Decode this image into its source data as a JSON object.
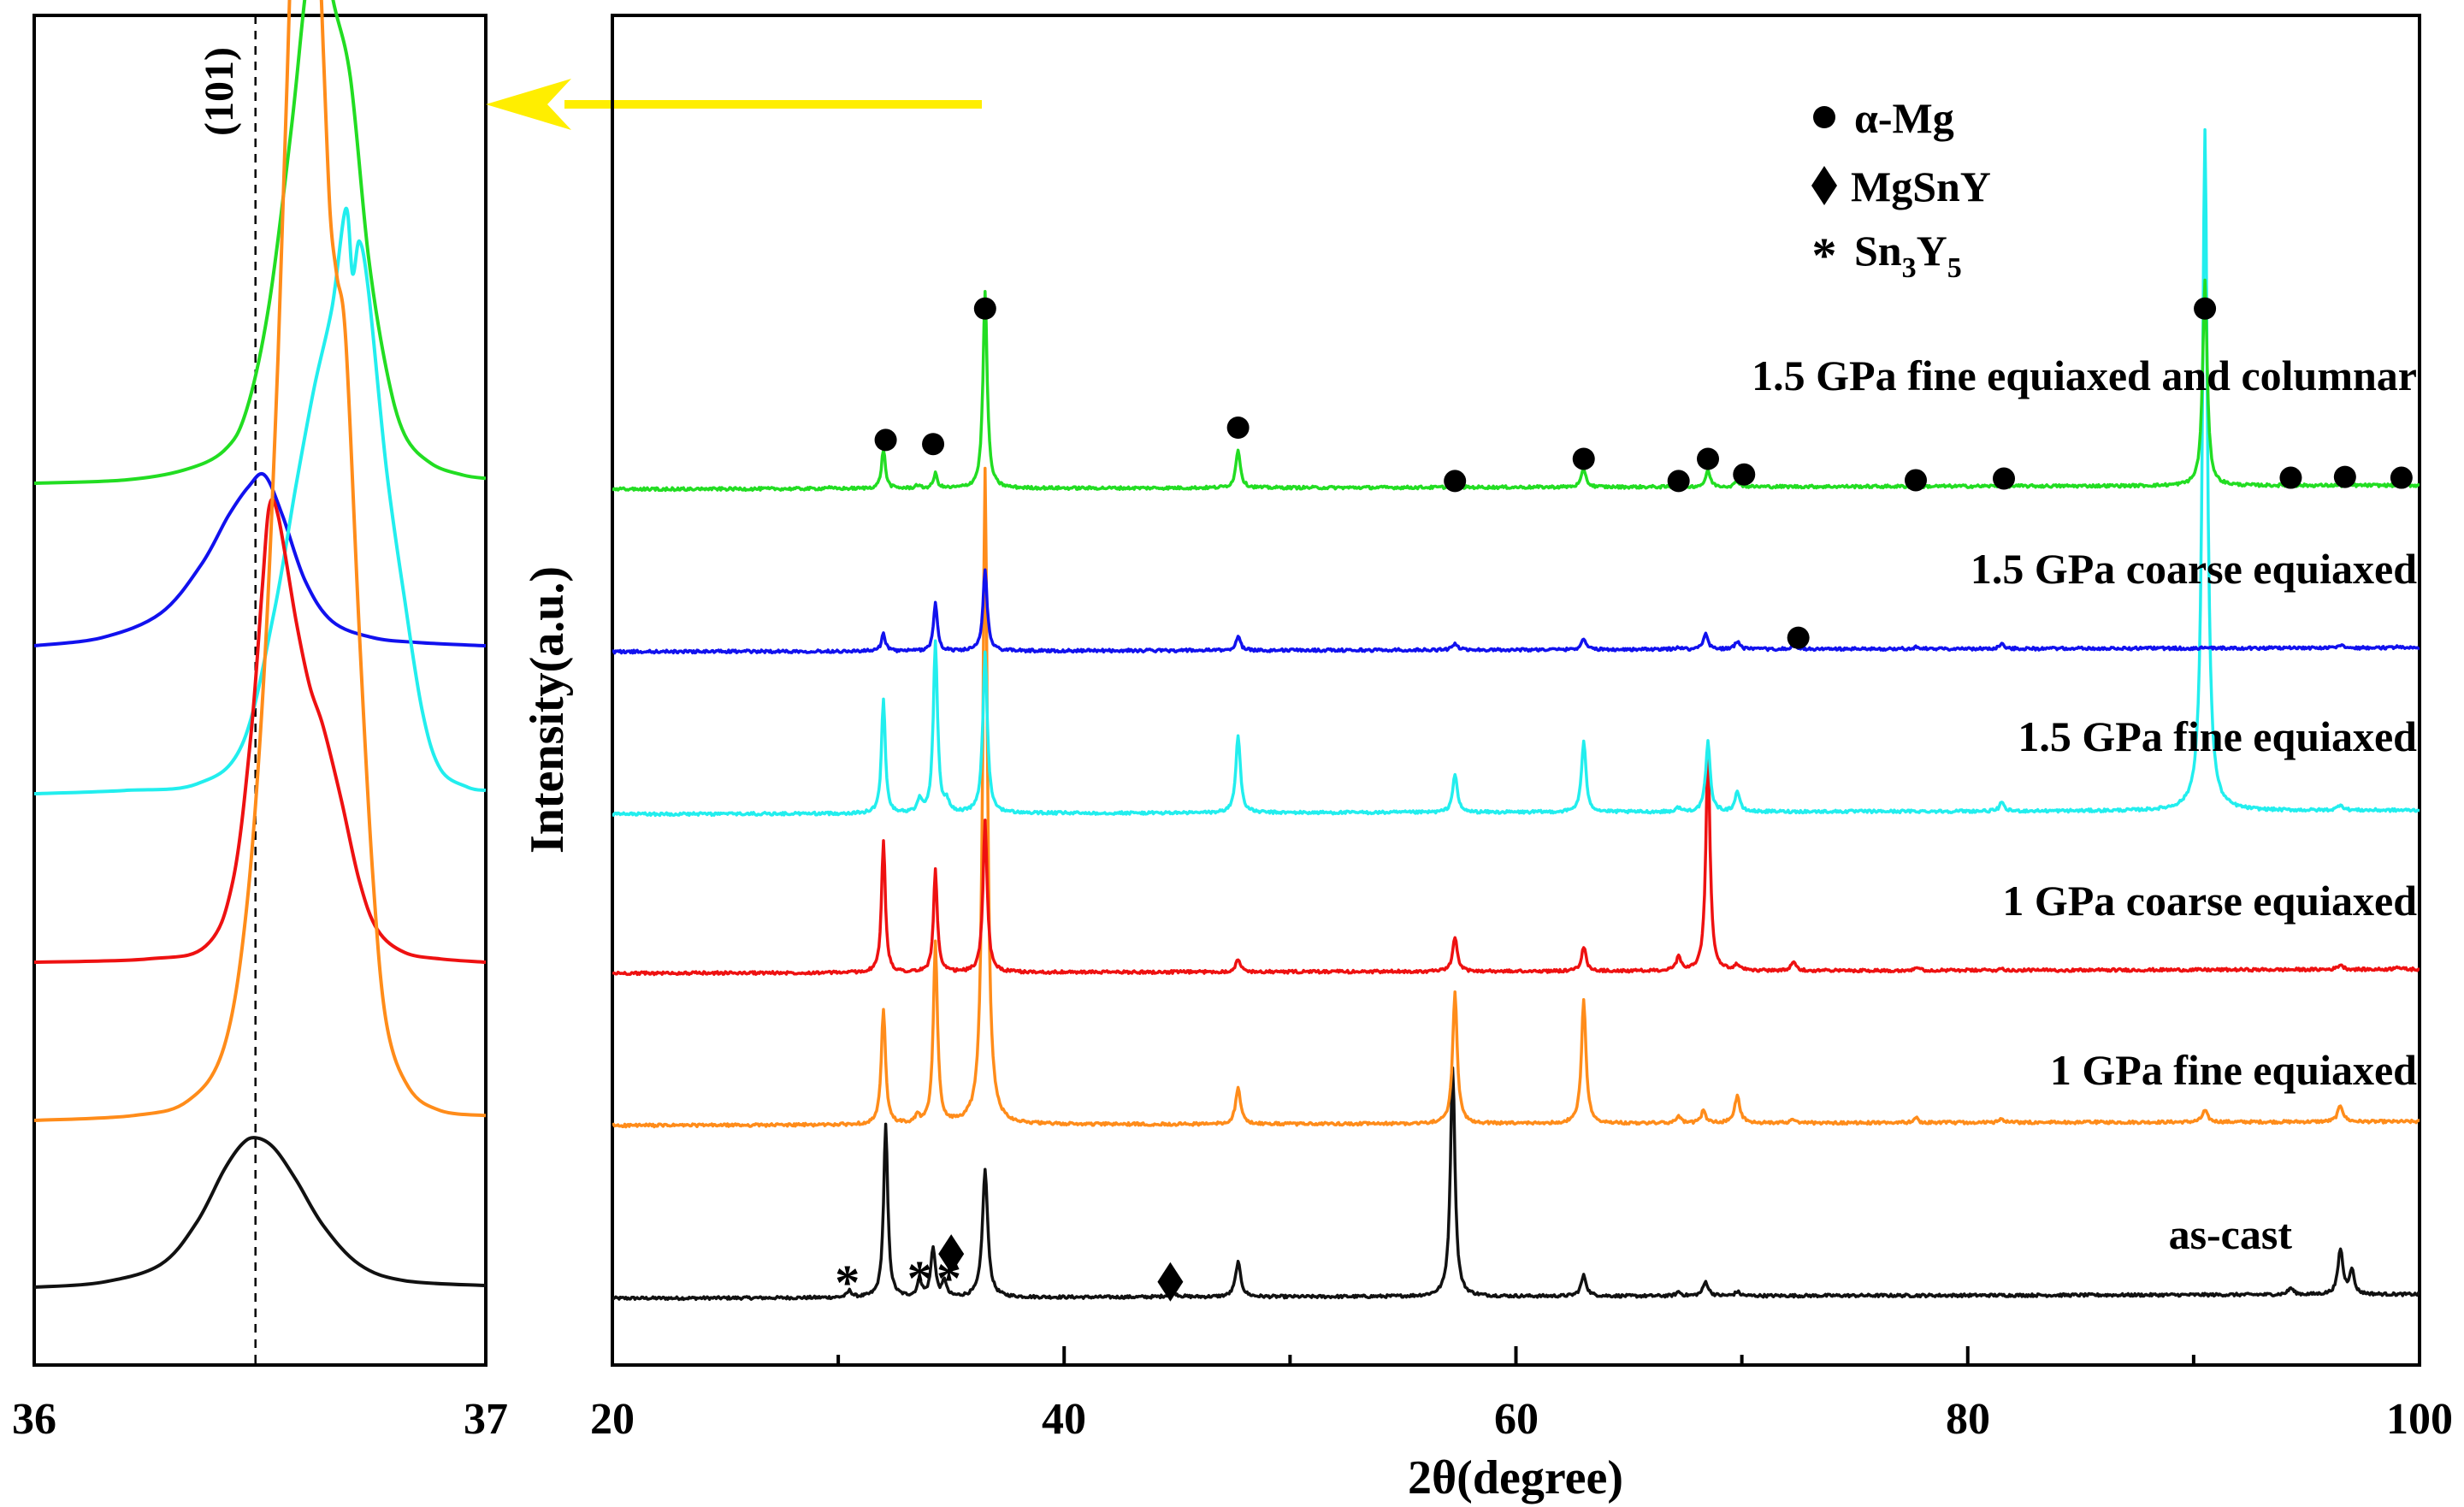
{
  "chart_data": [
    {
      "id": "inset",
      "type": "line",
      "xlim": [
        36,
        37
      ],
      "x_ticks": [
        36,
        37
      ],
      "tick_labels": [
        "36",
        "37"
      ],
      "reference_line_x": 36.49,
      "reference_label": "(101)",
      "series": [
        {
          "name": "1.5 GPa fine equiaxed and columnar",
          "color": "#22dd22",
          "baseline": 5.0,
          "points": [
            [
              36.0,
              5.0
            ],
            [
              36.2,
              5.02
            ],
            [
              36.33,
              5.08
            ],
            [
              36.42,
              5.2
            ],
            [
              36.47,
              5.45
            ],
            [
              36.52,
              6.1
            ],
            [
              36.57,
              7.2
            ],
            [
              36.6,
              8.0
            ],
            [
              36.63,
              8.6
            ],
            [
              36.66,
              8.0
            ],
            [
              36.7,
              7.5
            ],
            [
              36.74,
              6.4
            ],
            [
              36.78,
              5.7
            ],
            [
              36.82,
              5.3
            ],
            [
              36.88,
              5.12
            ],
            [
              36.95,
              5.05
            ],
            [
              37.0,
              5.03
            ]
          ]
        },
        {
          "name": "1.5 GPa coarse equiaxed",
          "color": "#1111ee",
          "baseline": 4.0,
          "points": [
            [
              36.0,
              4.0
            ],
            [
              36.15,
              4.05
            ],
            [
              36.28,
              4.2
            ],
            [
              36.37,
              4.5
            ],
            [
              36.43,
              4.8
            ],
            [
              36.475,
              4.98
            ],
            [
              36.51,
              5.05
            ],
            [
              36.55,
              4.8
            ],
            [
              36.6,
              4.4
            ],
            [
              36.66,
              4.15
            ],
            [
              36.75,
              4.05
            ],
            [
              36.85,
              4.02
            ],
            [
              37.0,
              4.0
            ]
          ]
        },
        {
          "name": "1.5 GPa fine equiaxed",
          "color": "#22eeee",
          "baseline": 3.0,
          "points": [
            [
              36.0,
              3.0
            ],
            [
              36.2,
              3.02
            ],
            [
              36.36,
              3.06
            ],
            [
              36.46,
              3.3
            ],
            [
              36.53,
              4.1
            ],
            [
              36.58,
              4.9
            ],
            [
              36.62,
              5.5
            ],
            [
              36.66,
              6.0
            ],
            [
              36.69,
              6.6
            ],
            [
              36.705,
              6.2
            ],
            [
              36.72,
              6.4
            ],
            [
              36.74,
              6.1
            ],
            [
              36.78,
              5.0
            ],
            [
              36.82,
              4.2
            ],
            [
              36.86,
              3.5
            ],
            [
              36.9,
              3.15
            ],
            [
              36.96,
              3.04
            ],
            [
              37.0,
              3.02
            ]
          ]
        },
        {
          "name": "1 GPa coarse equiaxed",
          "color": "#ee1111",
          "baseline": 2.0,
          "points": [
            [
              36.0,
              2.0
            ],
            [
              36.25,
              2.02
            ],
            [
              36.38,
              2.1
            ],
            [
              36.44,
              2.5
            ],
            [
              36.48,
              3.4
            ],
            [
              36.505,
              4.3
            ],
            [
              36.52,
              4.8
            ],
            [
              36.54,
              4.75
            ],
            [
              36.58,
              4.1
            ],
            [
              36.61,
              3.7
            ],
            [
              36.64,
              3.45
            ],
            [
              36.68,
              3.0
            ],
            [
              36.72,
              2.5
            ],
            [
              36.76,
              2.2
            ],
            [
              36.82,
              2.06
            ],
            [
              36.9,
              2.02
            ],
            [
              37.0,
              2.0
            ]
          ]
        },
        {
          "name": "1 GPa fine equiaxed",
          "color": "#ff8c1a",
          "baseline": 1.0,
          "points": [
            [
              36.0,
              1.0
            ],
            [
              36.22,
              1.03
            ],
            [
              36.34,
              1.12
            ],
            [
              36.42,
              1.45
            ],
            [
              36.47,
              2.3
            ],
            [
              36.51,
              3.8
            ],
            [
              36.54,
              5.7
            ],
            [
              36.56,
              7.4
            ],
            [
              36.575,
              8.8
            ],
            [
              36.59,
              9.45
            ],
            [
              36.6,
              9.7
            ],
            [
              36.61,
              9.45
            ],
            [
              36.625,
              8.7
            ],
            [
              36.64,
              7.6
            ],
            [
              36.655,
              6.6
            ],
            [
              36.67,
              6.2
            ],
            [
              36.69,
              5.8
            ],
            [
              36.72,
              4.0
            ],
            [
              36.75,
              2.5
            ],
            [
              36.78,
              1.6
            ],
            [
              36.83,
              1.2
            ],
            [
              36.9,
              1.06
            ],
            [
              37.0,
              1.03
            ]
          ]
        },
        {
          "name": "as-cast",
          "color": "#111111",
          "baseline": 0.0,
          "points": [
            [
              36.0,
              0.0
            ],
            [
              36.15,
              0.03
            ],
            [
              36.28,
              0.14
            ],
            [
              36.36,
              0.4
            ],
            [
              36.42,
              0.72
            ],
            [
              36.46,
              0.88
            ],
            [
              36.49,
              0.92
            ],
            [
              36.53,
              0.86
            ],
            [
              36.58,
              0.66
            ],
            [
              36.64,
              0.38
            ],
            [
              36.72,
              0.14
            ],
            [
              36.82,
              0.04
            ],
            [
              37.0,
              0.01
            ]
          ]
        }
      ]
    },
    {
      "id": "main",
      "type": "line",
      "xlabel": "2θ(degree)",
      "ylabel": "Intensity(a.u.)",
      "xlim": [
        20,
        100
      ],
      "x_ticks": [
        20,
        40,
        60,
        80,
        100
      ],
      "tick_labels": [
        "20",
        "40",
        "60",
        "80",
        "100"
      ],
      "minor_ticks": [
        30,
        50,
        70,
        90
      ],
      "legend": {
        "placement": "top-right",
        "items": [
          {
            "marker": "circle",
            "label": "α-Mg"
          },
          {
            "marker": "diamond",
            "label": "MgSnY"
          },
          {
            "marker": "star",
            "label": "Sn",
            "sub1": "3",
            "mid": "Y",
            "sub2": "5"
          }
        ]
      },
      "series": [
        {
          "name": "as-cast",
          "label": "as-cast",
          "color": "#111111",
          "baseline": 0.0,
          "peaks": [
            [
              30.5,
              0.08,
              0.12
            ],
            [
              32.1,
              2.1,
              0.11
            ],
            [
              33.6,
              0.2,
              0.12
            ],
            [
              34.2,
              0.6,
              0.12
            ],
            [
              34.7,
              0.2,
              0.1
            ],
            [
              36.5,
              1.55,
              0.14
            ],
            [
              44.8,
              0.06,
              0.2
            ],
            [
              47.7,
              0.42,
              0.14
            ],
            [
              57.2,
              2.8,
              0.12
            ],
            [
              63.0,
              0.25,
              0.14
            ],
            [
              67.2,
              0.05,
              0.12
            ],
            [
              68.4,
              0.17,
              0.14
            ],
            [
              69.8,
              0.05,
              0.12
            ],
            [
              94.3,
              0.08,
              0.14
            ],
            [
              96.5,
              0.55,
              0.13
            ],
            [
              97.0,
              0.3,
              0.12
            ]
          ]
        },
        {
          "name": "1 GPa fine equiaxed",
          "label": "1 GPa fine equiaxed",
          "color": "#ff8c1a",
          "baseline": 1.0,
          "peaks": [
            [
              32.0,
              1.4,
              0.11
            ],
            [
              33.5,
              0.1,
              0.1
            ],
            [
              34.3,
              2.2,
              0.11
            ],
            [
              36.5,
              8.0,
              0.12
            ],
            [
              47.7,
              0.45,
              0.13
            ],
            [
              57.3,
              1.6,
              0.12
            ],
            [
              63.0,
              1.5,
              0.12
            ],
            [
              67.2,
              0.08,
              0.12
            ],
            [
              68.3,
              0.15,
              0.12
            ],
            [
              69.8,
              0.33,
              0.14
            ],
            [
              72.3,
              0.05,
              0.12
            ],
            [
              77.7,
              0.06,
              0.12
            ],
            [
              81.5,
              0.04,
              0.12
            ],
            [
              90.5,
              0.14,
              0.14
            ],
            [
              96.5,
              0.2,
              0.14
            ]
          ]
        },
        {
          "name": "1 GPa coarse equiaxed",
          "label": "1 GPa coarse equiaxed",
          "color": "#ee1111",
          "baseline": 2.0,
          "peaks": [
            [
              32.0,
              1.6,
              0.1
            ],
            [
              34.3,
              1.25,
              0.1
            ],
            [
              36.5,
              1.85,
              0.11
            ],
            [
              47.7,
              0.16,
              0.12
            ],
            [
              57.3,
              0.42,
              0.12
            ],
            [
              63.0,
              0.3,
              0.12
            ],
            [
              67.2,
              0.16,
              0.12
            ],
            [
              68.5,
              2.7,
              0.11
            ],
            [
              69.8,
              0.07,
              0.12
            ],
            [
              72.3,
              0.12,
              0.12
            ],
            [
              77.7,
              0.04,
              0.12
            ],
            [
              81.5,
              0.02,
              0.12
            ],
            [
              96.5,
              0.06,
              0.14
            ],
            [
              99.0,
              0.04,
              0.12
            ]
          ]
        },
        {
          "name": "1.5 GPa fine equiaxed",
          "label": "1.5 GPa fine equiaxed",
          "color": "#22eeee",
          "baseline": 3.0,
          "peaks": [
            [
              32.0,
              1.4,
              0.1
            ],
            [
              33.6,
              0.17,
              0.1
            ],
            [
              34.3,
              2.1,
              0.11
            ],
            [
              34.8,
              0.12,
              0.12
            ],
            [
              36.5,
              1.95,
              0.12
            ],
            [
              47.7,
              0.95,
              0.12
            ],
            [
              57.3,
              0.47,
              0.12
            ],
            [
              63.0,
              0.85,
              0.12
            ],
            [
              67.2,
              0.05,
              0.12
            ],
            [
              68.5,
              0.85,
              0.12
            ],
            [
              69.8,
              0.25,
              0.12
            ],
            [
              81.5,
              0.1,
              0.12
            ],
            [
              90.5,
              8.3,
              0.13
            ],
            [
              96.5,
              0.07,
              0.14
            ]
          ]
        },
        {
          "name": "1.5 GPa coarse equiaxed",
          "label": "1.5 GPa coarse equiaxed",
          "color": "#1111ee",
          "baseline": 4.0,
          "peaks": [
            [
              32.0,
              0.22,
              0.1
            ],
            [
              34.3,
              0.6,
              0.1
            ],
            [
              36.5,
              1.0,
              0.11
            ],
            [
              47.7,
              0.17,
              0.12
            ],
            [
              57.3,
              0.08,
              0.12
            ],
            [
              63.0,
              0.14,
              0.12
            ],
            [
              67.2,
              0.03,
              0.12
            ],
            [
              68.4,
              0.2,
              0.12
            ],
            [
              69.8,
              0.1,
              0.12
            ],
            [
              72.3,
              0.04,
              0.12
            ],
            [
              77.7,
              0.02,
              0.12
            ],
            [
              81.5,
              0.06,
              0.12
            ],
            [
              96.5,
              0.03,
              0.14
            ],
            [
              99.0,
              0.02,
              0.12
            ]
          ]
        },
        {
          "name": "1.5 GPa fine equiaxed and columnar",
          "label": "1.5 GPa fine equiaxed and columnar",
          "color": "#22dd22",
          "baseline": 5.0,
          "peaks": [
            [
              29.5,
              0.02,
              0.1
            ],
            [
              32.0,
              0.48,
              0.1
            ],
            [
              33.5,
              0.04,
              0.1
            ],
            [
              34.3,
              0.18,
              0.1
            ],
            [
              36.5,
              2.4,
              0.11
            ],
            [
              47.7,
              0.47,
              0.12
            ],
            [
              57.3,
              0.04,
              0.12
            ],
            [
              63.0,
              0.22,
              0.12
            ],
            [
              68.5,
              0.2,
              0.12
            ],
            [
              69.8,
              0.07,
              0.12
            ],
            [
              81.5,
              0.02,
              0.12
            ],
            [
              90.5,
              2.5,
              0.12
            ]
          ]
        }
      ],
      "annotations": [
        {
          "marker": "circle",
          "x": 32.1,
          "y": 5.6
        },
        {
          "marker": "circle",
          "x": 34.2,
          "y": 5.55
        },
        {
          "marker": "circle",
          "x": 36.5,
          "y": 7.2
        },
        {
          "marker": "circle",
          "x": 47.7,
          "y": 5.75
        },
        {
          "marker": "circle",
          "x": 57.3,
          "y": 5.1
        },
        {
          "marker": "circle",
          "x": 63.0,
          "y": 5.37
        },
        {
          "marker": "circle",
          "x": 67.2,
          "y": 5.1
        },
        {
          "marker": "circle",
          "x": 68.5,
          "y": 5.37
        },
        {
          "marker": "circle",
          "x": 70.1,
          "y": 5.18
        },
        {
          "marker": "circle",
          "x": 77.7,
          "y": 5.11
        },
        {
          "marker": "circle",
          "x": 81.6,
          "y": 5.13
        },
        {
          "marker": "circle",
          "x": 90.5,
          "y": 7.2
        },
        {
          "marker": "circle",
          "x": 94.3,
          "y": 5.14
        },
        {
          "marker": "circle",
          "x": 96.7,
          "y": 5.15
        },
        {
          "marker": "circle",
          "x": 99.2,
          "y": 5.14
        },
        {
          "marker": "circle",
          "x": 72.5,
          "y": 4.17
        },
        {
          "marker": "diamond",
          "x": 35.0,
          "y": 0.54
        },
        {
          "marker": "diamond",
          "x": 44.7,
          "y": 0.2
        },
        {
          "marker": "star",
          "x": 30.4,
          "y": 0.22
        },
        {
          "marker": "star",
          "x": 33.6,
          "y": 0.27
        },
        {
          "marker": "star",
          "x": 34.9,
          "y": 0.27
        }
      ]
    }
  ],
  "colors": {
    "arrow": "#ffee00",
    "axes": "#000000",
    "reference_line": "#000000"
  }
}
